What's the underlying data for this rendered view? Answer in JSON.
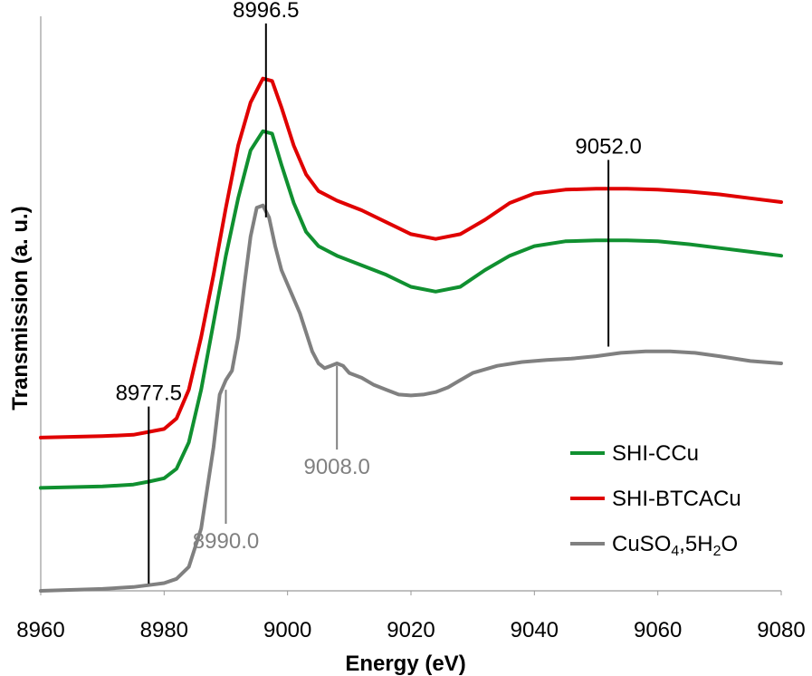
{
  "chart_data": {
    "type": "line",
    "xlabel": "Energy (eV)",
    "ylabel": "Transmission (a. u.)",
    "xlim": [
      8960,
      9080
    ],
    "xticks": [
      "8960",
      "8980",
      "9000",
      "9020",
      "9040",
      "9060",
      "9080"
    ],
    "ylim": [
      0,
      1.2
    ],
    "y_tick_labels": false,
    "grid": false,
    "legend_position": "bottom-right",
    "colors": {
      "SHI-CCu": "#109030",
      "SHI-BTCACu": "#e00000",
      "CuSO4,5H2O": "#808080",
      "annotation_dark": "#000000",
      "annotation_gray": "#808080"
    },
    "series": [
      {
        "name": "SHI-CCu",
        "legend_label": "SHI-CCu",
        "points": [
          [
            8960,
            0.215
          ],
          [
            8970,
            0.218
          ],
          [
            8975,
            0.222
          ],
          [
            8977.5,
            0.228
          ],
          [
            8980,
            0.235
          ],
          [
            8982,
            0.255
          ],
          [
            8984,
            0.31
          ],
          [
            8986,
            0.42
          ],
          [
            8988,
            0.56
          ],
          [
            8990,
            0.7
          ],
          [
            8992,
            0.82
          ],
          [
            8994,
            0.92
          ],
          [
            8996,
            0.96
          ],
          [
            8997.5,
            0.955
          ],
          [
            8999,
            0.89
          ],
          [
            9001,
            0.81
          ],
          [
            9003,
            0.75
          ],
          [
            9005,
            0.72
          ],
          [
            9008,
            0.7
          ],
          [
            9012,
            0.68
          ],
          [
            9016,
            0.66
          ],
          [
            9020,
            0.635
          ],
          [
            9024,
            0.625
          ],
          [
            9028,
            0.635
          ],
          [
            9032,
            0.67
          ],
          [
            9036,
            0.7
          ],
          [
            9040,
            0.72
          ],
          [
            9045,
            0.73
          ],
          [
            9050,
            0.732
          ],
          [
            9055,
            0.732
          ],
          [
            9060,
            0.73
          ],
          [
            9065,
            0.724
          ],
          [
            9070,
            0.716
          ],
          [
            9075,
            0.708
          ],
          [
            9080,
            0.7
          ]
        ]
      },
      {
        "name": "SHI-BTCACu",
        "legend_label": "SHI-BTCACu",
        "points": [
          [
            8960,
            0.32
          ],
          [
            8970,
            0.323
          ],
          [
            8975,
            0.326
          ],
          [
            8977.5,
            0.332
          ],
          [
            8980,
            0.338
          ],
          [
            8982,
            0.36
          ],
          [
            8984,
            0.42
          ],
          [
            8986,
            0.53
          ],
          [
            8988,
            0.66
          ],
          [
            8990,
            0.8
          ],
          [
            8992,
            0.93
          ],
          [
            8994,
            1.02
          ],
          [
            8996,
            1.07
          ],
          [
            8997.5,
            1.065
          ],
          [
            8999,
            1.01
          ],
          [
            9001,
            0.93
          ],
          [
            9003,
            0.87
          ],
          [
            9005,
            0.835
          ],
          [
            9008,
            0.815
          ],
          [
            9012,
            0.795
          ],
          [
            9016,
            0.77
          ],
          [
            9020,
            0.745
          ],
          [
            9024,
            0.735
          ],
          [
            9028,
            0.745
          ],
          [
            9032,
            0.775
          ],
          [
            9036,
            0.81
          ],
          [
            9040,
            0.83
          ],
          [
            9045,
            0.838
          ],
          [
            9050,
            0.84
          ],
          [
            9055,
            0.84
          ],
          [
            9060,
            0.838
          ],
          [
            9065,
            0.834
          ],
          [
            9070,
            0.828
          ],
          [
            9075,
            0.82
          ],
          [
            9080,
            0.812
          ]
        ]
      },
      {
        "name": "CuSO4,5H2O",
        "legend_label": "CuSO4,5H2O",
        "points": [
          [
            8960,
            0.0
          ],
          [
            8970,
            0.004
          ],
          [
            8975,
            0.008
          ],
          [
            8977.5,
            0.012
          ],
          [
            8980,
            0.016
          ],
          [
            8982,
            0.025
          ],
          [
            8984,
            0.05
          ],
          [
            8986,
            0.13
          ],
          [
            8988,
            0.3
          ],
          [
            8989,
            0.41
          ],
          [
            8990,
            0.44
          ],
          [
            8991,
            0.46
          ],
          [
            8992,
            0.53
          ],
          [
            8993,
            0.64
          ],
          [
            8994,
            0.74
          ],
          [
            8995,
            0.8
          ],
          [
            8996,
            0.805
          ],
          [
            8997,
            0.78
          ],
          [
            8998,
            0.72
          ],
          [
            8999,
            0.67
          ],
          [
            9000,
            0.64
          ],
          [
            9001,
            0.61
          ],
          [
            9002,
            0.58
          ],
          [
            9003,
            0.54
          ],
          [
            9004,
            0.5
          ],
          [
            9005,
            0.475
          ],
          [
            9006,
            0.465
          ],
          [
            9007,
            0.47
          ],
          [
            9008,
            0.475
          ],
          [
            9009,
            0.47
          ],
          [
            9010,
            0.455
          ],
          [
            9012,
            0.445
          ],
          [
            9014,
            0.43
          ],
          [
            9016,
            0.42
          ],
          [
            9018,
            0.41
          ],
          [
            9020,
            0.408
          ],
          [
            9022,
            0.41
          ],
          [
            9024,
            0.415
          ],
          [
            9026,
            0.425
          ],
          [
            9028,
            0.44
          ],
          [
            9030,
            0.455
          ],
          [
            9034,
            0.47
          ],
          [
            9038,
            0.478
          ],
          [
            9042,
            0.482
          ],
          [
            9046,
            0.485
          ],
          [
            9050,
            0.49
          ],
          [
            9054,
            0.497
          ],
          [
            9058,
            0.5
          ],
          [
            9062,
            0.5
          ],
          [
            9066,
            0.497
          ],
          [
            9070,
            0.49
          ],
          [
            9075,
            0.48
          ],
          [
            9080,
            0.475
          ]
        ]
      }
    ],
    "annotations": [
      {
        "label": "8996.5",
        "x": 8996.5,
        "color": "#000000",
        "y_from": 0.78,
        "y_to": 1.185
      },
      {
        "label": "9052.0",
        "x": 9052.0,
        "color": "#000000",
        "y_from": 0.51,
        "y_to": 0.9
      },
      {
        "label": "8977.5",
        "x": 8977.5,
        "color": "#000000",
        "y_from": 0.015,
        "y_to": 0.385
      },
      {
        "label": "9008.0",
        "x": 9008.0,
        "color": "#808080",
        "y_from": 0.47,
        "y_to": 0.295
      },
      {
        "label": "8990.0",
        "x": 8990.0,
        "color": "#808080",
        "y_from": 0.42,
        "y_to": 0.14
      }
    ]
  }
}
